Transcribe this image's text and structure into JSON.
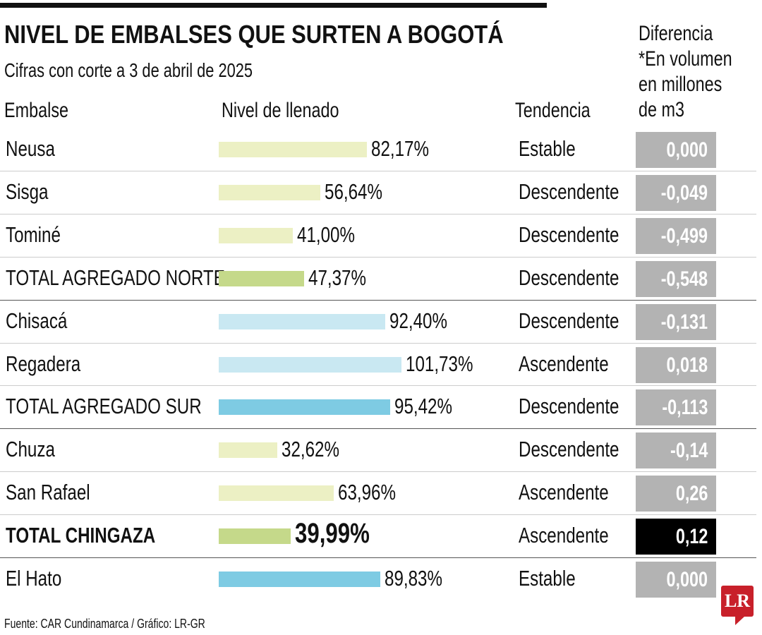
{
  "title": "NIVEL DE EMBALSES QUE SURTEN A BOGOTÁ",
  "subtitle": "Cifras con corte a 3 de abril de 2025",
  "headers": {
    "embalse": "Embalse",
    "nivel": "Nivel de llenado",
    "tendencia": "Tendencia",
    "diferencia": [
      "Diferencia",
      "*En volumen",
      "en millones",
      "de m3"
    ]
  },
  "colors": {
    "light_green": "#ecf0c4",
    "green": "#c5d98a",
    "light_blue": "#c9e8f2",
    "blue": "#7ecbe3",
    "gray_box": "#b3b3b3",
    "highlight_box": "#000000",
    "logo": "#c8202a"
  },
  "rows": [
    {
      "name": "Neusa",
      "pct_label": "82,17%",
      "value": 82.17,
      "trend": "Estable",
      "diff": "0,000",
      "color": "light_green",
      "bold": false
    },
    {
      "name": "Sisga",
      "pct_label": "56,64%",
      "value": 56.64,
      "trend": "Descendente",
      "diff": "-0,049",
      "color": "light_green",
      "bold": false
    },
    {
      "name": "Tominé",
      "pct_label": "41,00%",
      "value": 41.0,
      "trend": "Descendente",
      "diff": "-0,499",
      "color": "light_green",
      "bold": false
    },
    {
      "name": "TOTAL AGREGADO NORTE",
      "pct_label": "47,37%",
      "value": 47.37,
      "trend": "Descendente",
      "diff": "-0,548",
      "color": "green",
      "bold": false,
      "total": true
    },
    {
      "name": "Chisacá",
      "pct_label": "92,40%",
      "value": 92.4,
      "trend": "Descendente",
      "diff": "-0,131",
      "color": "light_blue",
      "bold": false
    },
    {
      "name": "Regadera",
      "pct_label": "101,73%",
      "value": 101.73,
      "trend": "Ascendente",
      "diff": "0,018",
      "color": "light_blue",
      "bold": false
    },
    {
      "name": "TOTAL AGREGADO SUR",
      "pct_label": "95,42%",
      "value": 95.42,
      "trend": "Descendente",
      "diff": "-0,113",
      "color": "blue",
      "bold": false,
      "total": true
    },
    {
      "name": "Chuza",
      "pct_label": "32,62%",
      "value": 32.62,
      "trend": "Descendente",
      "diff": "-0,14",
      "color": "light_green",
      "bold": false
    },
    {
      "name": "San Rafael",
      "pct_label": "63,96%",
      "value": 63.96,
      "trend": "Ascendente",
      "diff": "0,26",
      "color": "light_green",
      "bold": false
    },
    {
      "name": "TOTAL CHINGAZA",
      "pct_label": "39,99%",
      "value": 39.99,
      "trend": "Ascendente",
      "diff": "0,12",
      "color": "green",
      "bold": true,
      "total": true,
      "highlight": true
    },
    {
      "name": "El Hato",
      "pct_label": "89,83%",
      "value": 89.83,
      "trend": "Estable",
      "diff": "0,000",
      "color": "blue",
      "bold": false
    }
  ],
  "chart_data": {
    "type": "bar",
    "orientation": "horizontal",
    "categories": [
      "Neusa",
      "Sisga",
      "Tominé",
      "TOTAL AGREGADO NORTE",
      "Chisacá",
      "Regadera",
      "TOTAL AGREGADO SUR",
      "Chuza",
      "San Rafael",
      "TOTAL CHINGAZA",
      "El Hato"
    ],
    "values": [
      82.17,
      56.64,
      41.0,
      47.37,
      92.4,
      101.73,
      95.42,
      32.62,
      63.96,
      39.99,
      89.83
    ],
    "title": "NIVEL DE EMBALSES QUE SURTEN A BOGOTÁ",
    "unit": "%"
  },
  "footer": "Fuente: CAR Cundinamarca / Gráfico: LR-GR",
  "logo_text": "LR"
}
